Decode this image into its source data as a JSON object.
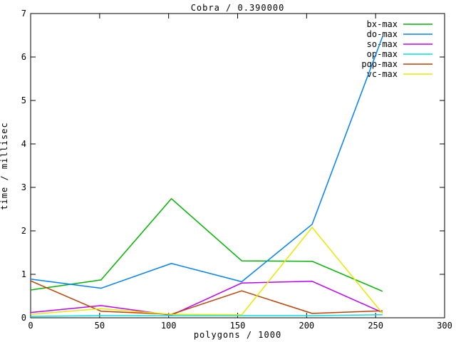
{
  "chart_data": {
    "type": "line",
    "title": "Cobra / 0.390000",
    "xlabel": "polygons / 1000",
    "ylabel": "time / millisec",
    "xlim": [
      0,
      300
    ],
    "ylim": [
      0,
      7
    ],
    "xticks": [
      0,
      50,
      100,
      150,
      200,
      250,
      300
    ],
    "yticks": [
      0,
      1,
      2,
      3,
      4,
      5,
      6,
      7
    ],
    "grid": false,
    "legend_position": "top-right-inside",
    "background_color": "#ffffff",
    "axis_color": "#000000",
    "x": [
      0,
      51,
      102,
      153,
      204,
      255
    ],
    "series": [
      {
        "name": "bx-max",
        "color": "#00b400",
        "values": [
          0.64,
          0.87,
          2.74,
          1.31,
          1.3,
          0.61
        ]
      },
      {
        "name": "do-max",
        "color": "#0080ff",
        "values": [
          0.89,
          0.68,
          1.25,
          0.83,
          2.15,
          6.47
        ]
      },
      {
        "name": "so-max",
        "color": "#bf00ff",
        "values": [
          0.12,
          0.28,
          0.06,
          0.8,
          0.84,
          0.12
        ]
      },
      {
        "name": "op-max",
        "color": "#00e0e0",
        "values": [
          0.03,
          0.05,
          0.05,
          0.05,
          0.05,
          0.07
        ]
      },
      {
        "name": "pqp-max",
        "color": "#bf4000",
        "values": [
          0.85,
          0.15,
          0.08,
          0.62,
          0.1,
          0.16
        ]
      },
      {
        "name": "vc-max",
        "color": "#e8e800",
        "values": [
          0.08,
          0.21,
          0.08,
          0.07,
          2.08,
          0.1
        ]
      }
    ]
  }
}
